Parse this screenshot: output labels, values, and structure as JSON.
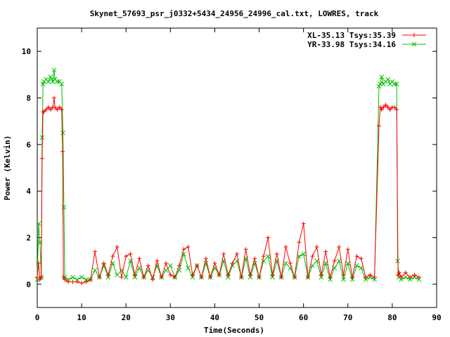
{
  "chart_data": {
    "type": "line",
    "title": "Skynet_57693_psr_j0332+5434_24956_24996_cal.txt, LOWRES, track",
    "xlabel": "Time(Seconds)",
    "ylabel": "Power (Kelvin)",
    "xlim": [
      0,
      90
    ],
    "ylim": [
      -1,
      11
    ],
    "xticks": [
      0,
      10,
      20,
      30,
      40,
      50,
      60,
      70,
      80,
      90
    ],
    "yticks": [
      0,
      2,
      4,
      6,
      8,
      10
    ],
    "grid": false,
    "legend_position": "top-right",
    "series": [
      {
        "name": "XL-35.13 Tsys:35.39",
        "color": "#ff0000",
        "marker": "plus",
        "x": [
          0,
          0.3,
          0.6,
          0.9,
          1.1,
          1.3,
          1.5,
          2,
          2.5,
          3,
          3.5,
          3.8,
          4,
          4.5,
          5,
          5.5,
          5.7,
          5.9,
          6.2,
          7,
          8,
          9,
          10,
          11,
          12,
          13,
          14,
          15,
          16,
          17,
          18,
          19,
          20,
          21,
          22,
          23,
          24,
          25,
          26,
          27,
          28,
          29,
          30,
          31,
          32,
          33,
          34,
          35,
          36,
          37,
          38,
          39,
          40,
          41,
          42,
          43,
          44,
          45,
          46,
          47,
          48,
          49,
          50,
          51,
          52,
          53,
          54,
          55,
          56,
          57,
          58,
          59,
          60,
          61,
          62,
          63,
          64,
          65,
          66,
          67,
          68,
          69,
          70,
          71,
          72,
          73,
          74,
          75,
          76,
          77,
          77.3,
          77.6,
          78,
          78.5,
          79,
          79.5,
          80,
          80.5,
          81,
          81.3,
          81.6,
          82,
          83,
          84,
          85,
          86
        ],
        "y": [
          0.3,
          0.9,
          0.2,
          0.3,
          5.4,
          7.4,
          7.4,
          7.5,
          7.6,
          7.5,
          7.6,
          8.0,
          7.6,
          7.5,
          7.6,
          7.5,
          5.7,
          0.3,
          0.2,
          0.1,
          0.1,
          0.1,
          0.05,
          0.1,
          0.2,
          1.4,
          0.3,
          0.9,
          0.4,
          1.2,
          1.6,
          0.3,
          1.2,
          1.3,
          0.4,
          1.1,
          0.3,
          0.8,
          0.2,
          1.0,
          0.3,
          0.9,
          0.4,
          0.3,
          0.8,
          1.5,
          1.6,
          0.4,
          0.8,
          0.3,
          1.1,
          0.3,
          0.9,
          0.4,
          1.3,
          0.4,
          0.9,
          1.3,
          0.3,
          1.5,
          0.4,
          1.1,
          0.3,
          1.2,
          2.0,
          0.4,
          1.3,
          0.3,
          1.6,
          0.9,
          0.3,
          1.8,
          2.6,
          0.3,
          1.2,
          1.6,
          0.4,
          1.4,
          0.3,
          1.0,
          1.6,
          0.4,
          1.5,
          0.3,
          1.2,
          1.1,
          0.3,
          0.4,
          0.3,
          6.8,
          7.6,
          7.5,
          7.6,
          7.7,
          7.6,
          7.5,
          7.6,
          7.6,
          7.5,
          0.4,
          0.5,
          0.3,
          0.5,
          0.3,
          0.4,
          0.3
        ]
      },
      {
        "name": "YR-33.98 Tsys:34.16",
        "color": "#00c000",
        "marker": "cross",
        "x": [
          0,
          0.3,
          0.6,
          0.9,
          1.1,
          1.3,
          1.5,
          2,
          2.5,
          3,
          3.5,
          3.8,
          4,
          4.5,
          5,
          5.5,
          5.8,
          6,
          6.2,
          7,
          8,
          9,
          10,
          11,
          12,
          13,
          14,
          15,
          16,
          17,
          18,
          19,
          20,
          21,
          22,
          23,
          24,
          25,
          26,
          27,
          28,
          29,
          30,
          31,
          32,
          33,
          34,
          35,
          36,
          37,
          38,
          39,
          40,
          41,
          42,
          43,
          44,
          45,
          46,
          47,
          48,
          49,
          50,
          51,
          52,
          53,
          54,
          55,
          56,
          57,
          58,
          59,
          60,
          61,
          62,
          63,
          64,
          65,
          66,
          67,
          68,
          69,
          70,
          71,
          72,
          73,
          74,
          75,
          76,
          77,
          77.3,
          77.6,
          78,
          78.5,
          79,
          79.5,
          80,
          80.5,
          81,
          81.2,
          81.5,
          82,
          83,
          84,
          85,
          86
        ],
        "y": [
          0.2,
          2.6,
          1.8,
          0.3,
          6.3,
          8.6,
          8.7,
          8.8,
          8.7,
          8.9,
          8.7,
          9.2,
          8.8,
          8.7,
          8.7,
          8.6,
          6.5,
          3.3,
          0.3,
          0.2,
          0.3,
          0.2,
          0.3,
          0.2,
          0.2,
          0.6,
          0.3,
          0.8,
          0.3,
          0.9,
          0.4,
          0.6,
          0.3,
          1.0,
          0.3,
          0.7,
          0.3,
          0.6,
          0.3,
          0.8,
          0.3,
          0.6,
          0.8,
          0.3,
          0.6,
          1.3,
          0.7,
          0.3,
          0.8,
          0.3,
          0.9,
          0.3,
          0.7,
          0.4,
          1.0,
          0.3,
          0.8,
          1.0,
          0.3,
          1.1,
          0.3,
          0.9,
          0.3,
          1.0,
          1.2,
          0.3,
          1.0,
          0.3,
          0.9,
          0.7,
          0.3,
          1.2,
          1.3,
          0.3,
          0.8,
          1.0,
          0.3,
          0.9,
          0.2,
          0.7,
          1.0,
          0.2,
          0.9,
          0.2,
          0.8,
          0.7,
          0.2,
          0.3,
          0.2,
          8.5,
          8.6,
          8.9,
          8.6,
          8.7,
          8.8,
          8.6,
          8.7,
          8.6,
          8.6,
          1.0,
          0.3,
          0.2,
          0.3,
          0.2,
          0.3,
          0.2
        ]
      }
    ]
  }
}
